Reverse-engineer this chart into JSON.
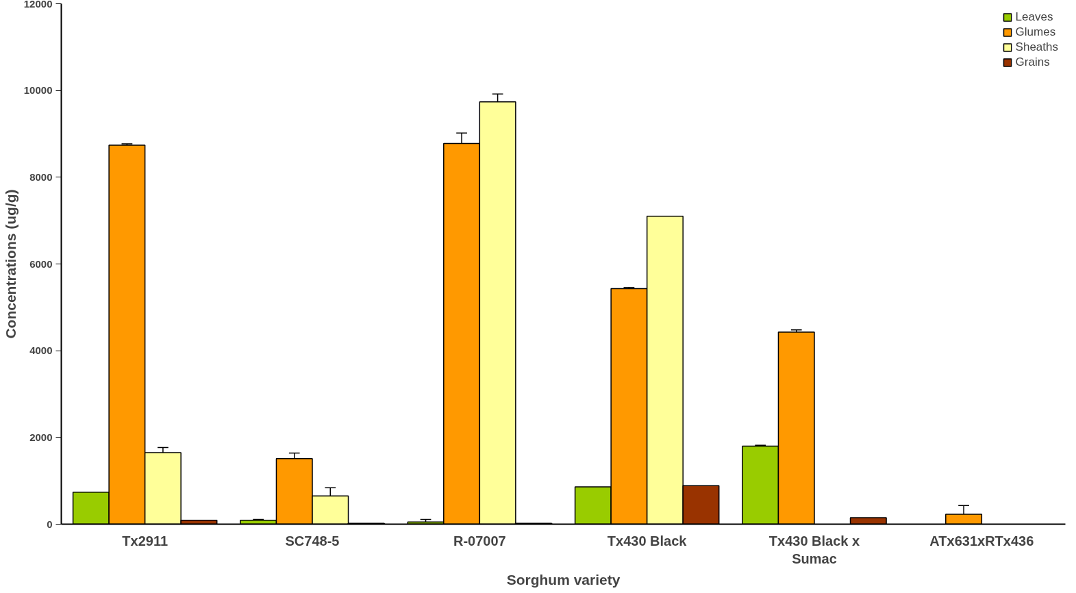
{
  "chart_data": {
    "type": "bar",
    "xlabel": "Sorghum variety",
    "ylabel": "Concentrations (ug/g)",
    "categories": [
      "Tx2911",
      "SC748-5",
      "R-07007",
      "Tx430 Black",
      "Tx430 Black x Sumac",
      "ATx631xRTx436"
    ],
    "series": [
      {
        "name": "Leaves",
        "color": "#99cc00",
        "values": [
          740,
          90,
          50,
          860,
          1800,
          null
        ],
        "errors": [
          null,
          [
            90,
            110
          ],
          [
            50,
            110
          ],
          null,
          [
            1800,
            1820
          ],
          null
        ]
      },
      {
        "name": "Glumes",
        "color": "#ff9900",
        "values": [
          8740,
          1510,
          8780,
          5430,
          4430,
          230
        ],
        "errors": [
          [
            8740,
            8770
          ],
          [
            1510,
            1640
          ],
          [
            8780,
            9020
          ],
          [
            5430,
            5460
          ],
          [
            4430,
            4480
          ],
          [
            230,
            430
          ]
        ]
      },
      {
        "name": "Sheaths",
        "color": "#ffff99",
        "values": [
          1650,
          650,
          9740,
          7100,
          null,
          null
        ],
        "errors": [
          [
            1650,
            1770
          ],
          [
            650,
            840
          ],
          [
            9740,
            9920
          ],
          null,
          null,
          null
        ]
      },
      {
        "name": "Grains",
        "color": "#993300",
        "values": [
          90,
          20,
          20,
          890,
          150,
          null
        ],
        "errors": [
          null,
          null,
          null,
          null,
          null,
          null
        ]
      }
    ],
    "ylim": [
      0,
      12000
    ],
    "yticks": [
      0,
      2000,
      4000,
      6000,
      8000,
      10000,
      12000
    ],
    "grid": false,
    "legend": "top right"
  }
}
